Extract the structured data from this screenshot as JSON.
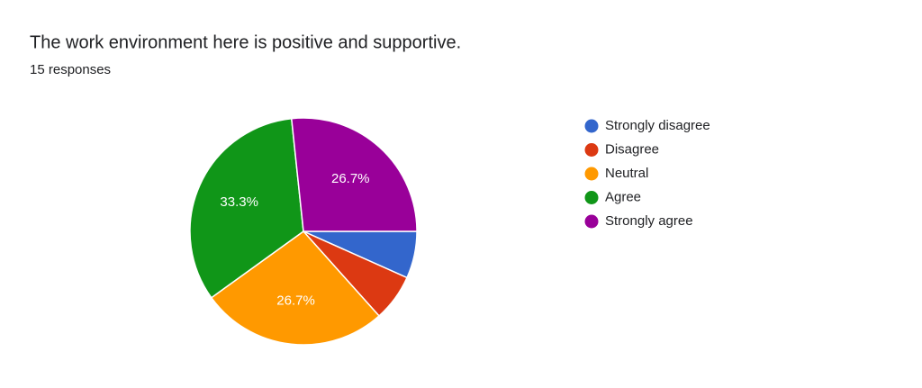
{
  "chart_data": {
    "type": "pie",
    "title": "The work environment here is positive and supportive.",
    "subtitle": "15 responses",
    "categories": [
      "Strongly disagree",
      "Disagree",
      "Neutral",
      "Agree",
      "Strongly agree"
    ],
    "values": [
      6.7,
      6.7,
      26.7,
      33.3,
      26.7
    ],
    "value_labels": [
      null,
      null,
      "26.7%",
      "33.3%",
      "26.7%"
    ],
    "colors": [
      "#3366cc",
      "#dc3912",
      "#ff9900",
      "#109618",
      "#990099"
    ],
    "legend": "right"
  }
}
